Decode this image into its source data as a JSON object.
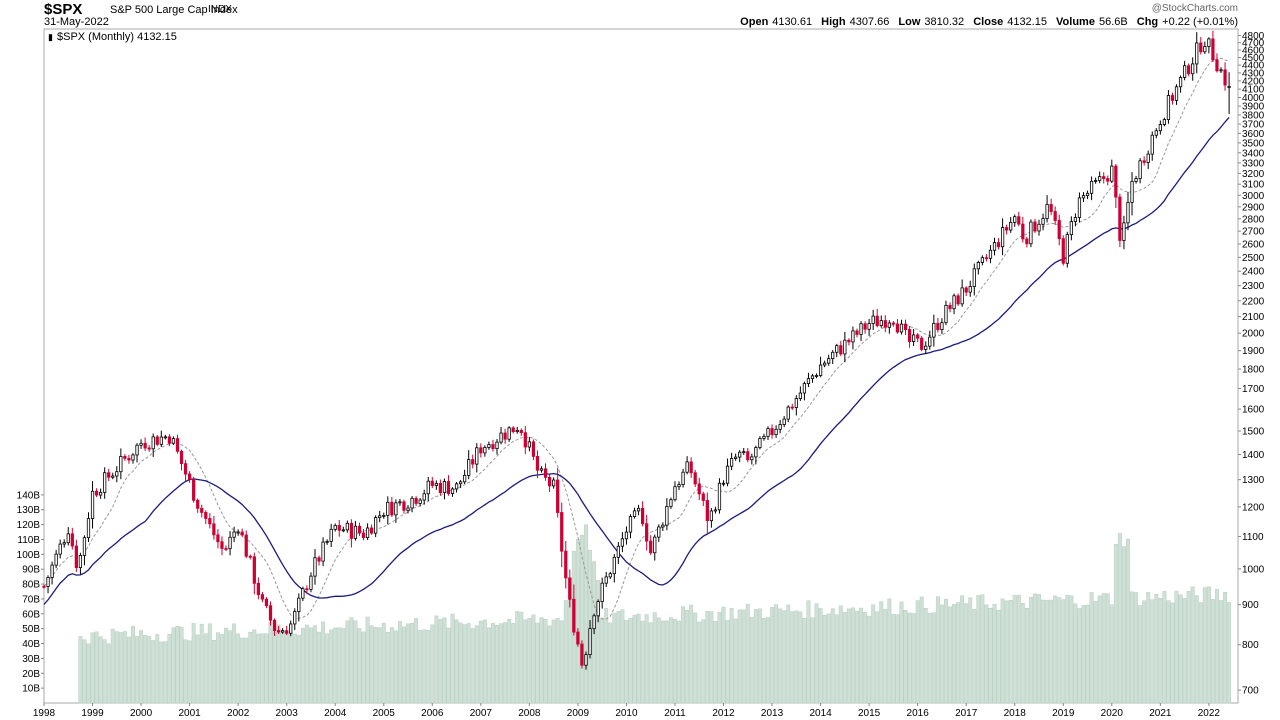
{
  "header": {
    "symbol": "$SPX",
    "name": "S&P 500 Large Cap Index",
    "exchange": "INDX",
    "date": "31-May-2022",
    "watermark": "@StockCharts.com",
    "ohlc": {
      "open_label": "Open",
      "open": "4130.61",
      "high_label": "High",
      "high": "4307.66",
      "low_label": "Low",
      "low": "3810.32",
      "close_label": "Close",
      "close": "4132.15",
      "volume_label": "Volume",
      "volume": "56.6B",
      "chg_label": "Chg",
      "chg": "+0.22 (+0.01%)"
    }
  },
  "legend": {
    "label": "$SPX (Monthly) 4132.15"
  },
  "colors": {
    "up": "#000000",
    "down": "#cc0033",
    "ma_long": "#1a1a80",
    "ma_short": "#999999",
    "volume": "#cfe0d6"
  },
  "chart_data": {
    "type": "candlestick",
    "x_labels": [
      "1998",
      "1999",
      "2000",
      "2001",
      "2002",
      "2003",
      "2004",
      "2005",
      "2006",
      "2007",
      "2008",
      "2009",
      "2010",
      "2011",
      "2012",
      "2013",
      "2014",
      "2015",
      "2016",
      "2017",
      "2018",
      "2019",
      "2020",
      "2021",
      "2022"
    ],
    "price_axis": {
      "scale": "log",
      "ticks": [
        700,
        800,
        900,
        1000,
        1100,
        1200,
        1300,
        1400,
        1500,
        1600,
        1700,
        1800,
        1900,
        2000,
        2100,
        2200,
        2300,
        2400,
        2500,
        2600,
        2700,
        2800,
        2900,
        3000,
        3100,
        3200,
        3300,
        3400,
        3500,
        3600,
        3700,
        3800,
        3900,
        4000,
        4100,
        4200,
        4300,
        4400,
        4500,
        4600,
        4700,
        4800
      ]
    },
    "volume_axis": {
      "ticks": [
        "10B",
        "20B",
        "30B",
        "40B",
        "50B",
        "60B",
        "70B",
        "80B",
        "90B",
        "100B",
        "110B",
        "120B",
        "130B",
        "140B"
      ]
    },
    "anchors": [
      {
        "d": 1998.0,
        "c": 950
      },
      {
        "d": 1998.5,
        "c": 1130
      },
      {
        "d": 1998.7,
        "c": 1000
      },
      {
        "d": 1999.0,
        "c": 1250
      },
      {
        "d": 2000.0,
        "c": 1450
      },
      {
        "d": 2000.6,
        "c": 1480
      },
      {
        "d": 2001.2,
        "c": 1200
      },
      {
        "d": 2001.7,
        "c": 1050
      },
      {
        "d": 2002.0,
        "c": 1140
      },
      {
        "d": 2002.5,
        "c": 900
      },
      {
        "d": 2002.8,
        "c": 830
      },
      {
        "d": 2003.1,
        "c": 850
      },
      {
        "d": 2003.5,
        "c": 990
      },
      {
        "d": 2004.0,
        "c": 1130
      },
      {
        "d": 2004.6,
        "c": 1110
      },
      {
        "d": 2005.0,
        "c": 1190
      },
      {
        "d": 2005.6,
        "c": 1230
      },
      {
        "d": 2006.0,
        "c": 1280
      },
      {
        "d": 2006.5,
        "c": 1270
      },
      {
        "d": 2007.0,
        "c": 1430
      },
      {
        "d": 2007.8,
        "c": 1530
      },
      {
        "d": 2008.2,
        "c": 1320
      },
      {
        "d": 2008.5,
        "c": 1270
      },
      {
        "d": 2008.8,
        "c": 920
      },
      {
        "d": 2009.1,
        "c": 750
      },
      {
        "d": 2009.3,
        "c": 880
      },
      {
        "d": 2010.0,
        "c": 1120
      },
      {
        "d": 2010.3,
        "c": 1190
      },
      {
        "d": 2010.5,
        "c": 1050
      },
      {
        "d": 2011.0,
        "c": 1280
      },
      {
        "d": 2011.3,
        "c": 1350
      },
      {
        "d": 2011.7,
        "c": 1150
      },
      {
        "d": 2012.0,
        "c": 1310
      },
      {
        "d": 2012.3,
        "c": 1400
      },
      {
        "d": 2012.5,
        "c": 1370
      },
      {
        "d": 2013.0,
        "c": 1500
      },
      {
        "d": 2014.0,
        "c": 1820
      },
      {
        "d": 2015.0,
        "c": 2060
      },
      {
        "d": 2015.5,
        "c": 2100
      },
      {
        "d": 2015.8,
        "c": 1950
      },
      {
        "d": 2016.1,
        "c": 1930
      },
      {
        "d": 2016.5,
        "c": 2100
      },
      {
        "d": 2017.0,
        "c": 2280
      },
      {
        "d": 2018.0,
        "c": 2820
      },
      {
        "d": 2018.2,
        "c": 2640
      },
      {
        "d": 2018.7,
        "c": 2910
      },
      {
        "d": 2019.0,
        "c": 2510
      },
      {
        "d": 2019.3,
        "c": 2940
      },
      {
        "d": 2020.0,
        "c": 3230
      },
      {
        "d": 2020.2,
        "c": 2580
      },
      {
        "d": 2020.4,
        "c": 3100
      },
      {
        "d": 2021.0,
        "c": 3760
      },
      {
        "d": 2021.9,
        "c": 4770
      },
      {
        "d": 2022.1,
        "c": 4520
      },
      {
        "d": 2022.4,
        "c": 4132
      }
    ],
    "last": {
      "open": 4130.61,
      "high": 4307.66,
      "low": 3810.32,
      "close": 4132.15
    }
  }
}
